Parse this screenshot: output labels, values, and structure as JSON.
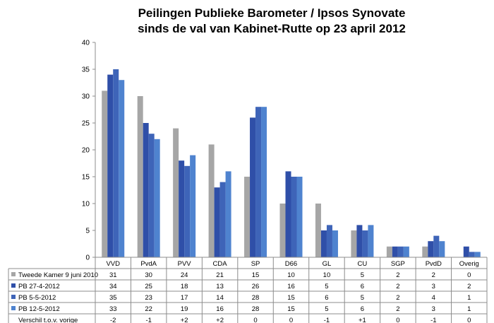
{
  "chart_data": {
    "type": "bar",
    "title": "Peilingen Publieke Barometer / Ipsos Synovate",
    "subtitle": "sinds de val van Kabinet-Rutte op 23 april 2012",
    "ylim": [
      0,
      40
    ],
    "yticks": [
      0,
      5,
      10,
      15,
      20,
      25,
      30,
      35,
      40
    ],
    "grid": false,
    "categories": [
      "VVD",
      "PvdA",
      "PVV",
      "CDA",
      "SP",
      "D66",
      "GL",
      "CU",
      "SGP",
      "PvdD",
      "Overig"
    ],
    "series": [
      {
        "name": "Tweede Kamer 9 juni 2010",
        "color": "#a6a6a6",
        "values": [
          31,
          30,
          24,
          21,
          15,
          10,
          10,
          5,
          2,
          2,
          0
        ]
      },
      {
        "name": "PB 27-4-2012",
        "color": "#2f4fa8",
        "values": [
          34,
          25,
          18,
          13,
          26,
          16,
          5,
          6,
          2,
          3,
          2
        ]
      },
      {
        "name": "PB 5-5-2012",
        "color": "#3e64b8",
        "values": [
          35,
          23,
          17,
          14,
          28,
          15,
          6,
          5,
          2,
          4,
          1
        ]
      },
      {
        "name": "PB 12-5-2012",
        "color": "#4f83cf",
        "values": [
          33,
          22,
          19,
          16,
          28,
          15,
          5,
          6,
          2,
          3,
          1
        ]
      }
    ],
    "extra_row": {
      "name": "Verschil t.o.v. vorige",
      "values": [
        "-2",
        "-1",
        "+2",
        "+2",
        "0",
        "0",
        "-1",
        "+1",
        "0",
        "-1",
        "0"
      ]
    }
  }
}
